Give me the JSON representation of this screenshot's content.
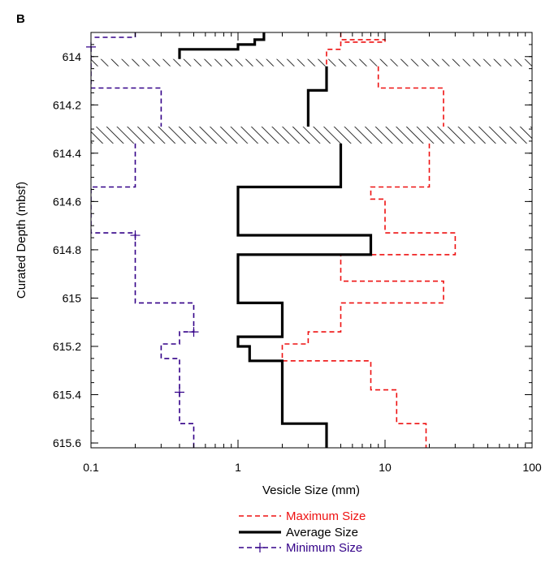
{
  "panel_label": "B",
  "legend": [
    {
      "label": "Maximum Size",
      "color": "#ee1111"
    },
    {
      "label": "Average Size",
      "color": "#000000"
    },
    {
      "label": "Minimum Size",
      "color": "#330088"
    }
  ],
  "chart_data": {
    "type": "line",
    "xlabel": "Vesicle Size (mm)",
    "ylabel": "Curated Depth (mbsf)",
    "x_scale": "log",
    "xlim": [
      0.1,
      100
    ],
    "ylim": [
      613.9,
      615.62
    ],
    "y_inverted": true,
    "grid": false,
    "legend_placement": "bottom",
    "x_ticks": [
      {
        "value": 0.1,
        "label": "0.1"
      },
      {
        "value": 1,
        "label": "1"
      },
      {
        "value": 10,
        "label": "10"
      },
      {
        "value": 100,
        "label": "100"
      }
    ],
    "y_ticks": [
      {
        "value": 614,
        "label": "614"
      },
      {
        "value": 614.2,
        "label": "614.2"
      },
      {
        "value": 614.4,
        "label": "614.4"
      },
      {
        "value": 614.6,
        "label": "614.6"
      },
      {
        "value": 614.8,
        "label": "614.8"
      },
      {
        "value": 615,
        "label": "615"
      },
      {
        "value": 615.2,
        "label": "615.2"
      },
      {
        "value": 615.4,
        "label": "615.4"
      },
      {
        "value": 615.6,
        "label": "615.6"
      }
    ],
    "hatched_depth_intervals": [
      [
        614.01,
        614.04
      ],
      [
        614.29,
        614.36
      ]
    ],
    "series": [
      {
        "name": "Maximum Size",
        "style": "dashed",
        "color": "#ee1111",
        "segments": [
          [
            [
              5,
              613.9
            ],
            [
              5,
              613.93
            ],
            [
              10,
              613.93
            ],
            [
              10,
              613.94
            ],
            [
              5,
              613.94
            ],
            [
              5,
              613.97
            ],
            [
              4,
              613.97
            ],
            [
              4,
              614.04
            ]
          ],
          [
            [
              9,
              614.04
            ],
            [
              9,
              614.13
            ],
            [
              25,
              614.13
            ],
            [
              25,
              614.29
            ]
          ],
          [
            [
              20,
              614.36
            ],
            [
              20,
              614.54
            ],
            [
              8,
              614.54
            ],
            [
              8,
              614.59
            ],
            [
              10,
              614.59
            ],
            [
              10,
              614.73
            ],
            [
              30,
              614.73
            ],
            [
              30,
              614.82
            ],
            [
              5,
              614.82
            ],
            [
              5,
              614.93
            ],
            [
              25,
              614.93
            ],
            [
              25,
              615.02
            ],
            [
              5,
              615.02
            ],
            [
              5,
              615.14
            ],
            [
              3,
              615.14
            ],
            [
              3,
              615.19
            ],
            [
              2,
              615.19
            ],
            [
              2,
              615.26
            ],
            [
              8,
              615.26
            ],
            [
              8,
              615.38
            ],
            [
              12,
              615.38
            ],
            [
              12,
              615.52
            ],
            [
              19,
              615.52
            ],
            [
              19,
              615.62
            ]
          ]
        ]
      },
      {
        "name": "Average Size",
        "style": "solid",
        "color": "#000000",
        "segments": [
          [
            [
              1.5,
              613.9
            ],
            [
              1.5,
              613.93
            ],
            [
              1.3,
              613.93
            ],
            [
              1.3,
              613.95
            ],
            [
              1,
              613.95
            ],
            [
              1,
              613.97
            ],
            [
              0.4,
              613.97
            ],
            [
              0.4,
              614.01
            ]
          ],
          [
            [
              4,
              614.04
            ],
            [
              4,
              614.14
            ],
            [
              3,
              614.14
            ],
            [
              3,
              614.29
            ]
          ],
          [
            [
              5,
              614.36
            ],
            [
              5,
              614.54
            ],
            [
              1,
              614.54
            ],
            [
              1,
              614.74
            ],
            [
              8,
              614.74
            ],
            [
              8,
              614.82
            ],
            [
              1,
              614.82
            ],
            [
              1,
              615.02
            ],
            [
              2,
              615.02
            ],
            [
              2,
              615.16
            ],
            [
              1,
              615.16
            ],
            [
              1,
              615.2
            ],
            [
              1.2,
              615.2
            ],
            [
              1.2,
              615.26
            ],
            [
              2,
              615.26
            ],
            [
              2,
              615.52
            ],
            [
              4,
              615.52
            ],
            [
              4,
              615.62
            ]
          ]
        ]
      },
      {
        "name": "Minimum Size",
        "style": "dashed",
        "color": "#330088",
        "markers_at": [
          [
            0.1,
            613.96
          ],
          [
            0.2,
            614.74
          ],
          [
            0.5,
            615.14
          ],
          [
            0.4,
            615.39
          ]
        ],
        "segments": [
          [
            [
              0.2,
              613.9
            ],
            [
              0.2,
              613.92
            ],
            [
              0.1,
              613.92
            ]
          ],
          [
            [
              0.1,
              613.96
            ],
            [
              0.1,
              614.13
            ],
            [
              0.3,
              614.13
            ],
            [
              0.3,
              614.29
            ]
          ],
          [
            [
              0.2,
              614.36
            ],
            [
              0.2,
              614.54
            ],
            [
              0.1,
              614.54
            ],
            [
              0.1,
              614.73
            ],
            [
              0.2,
              614.73
            ],
            [
              0.2,
              615.02
            ],
            [
              0.5,
              615.02
            ],
            [
              0.5,
              615.14
            ],
            [
              0.4,
              615.14
            ],
            [
              0.4,
              615.19
            ],
            [
              0.3,
              615.19
            ],
            [
              0.3,
              615.25
            ],
            [
              0.4,
              615.25
            ],
            [
              0.4,
              615.52
            ],
            [
              0.5,
              615.52
            ],
            [
              0.5,
              615.62
            ]
          ]
        ]
      }
    ]
  }
}
